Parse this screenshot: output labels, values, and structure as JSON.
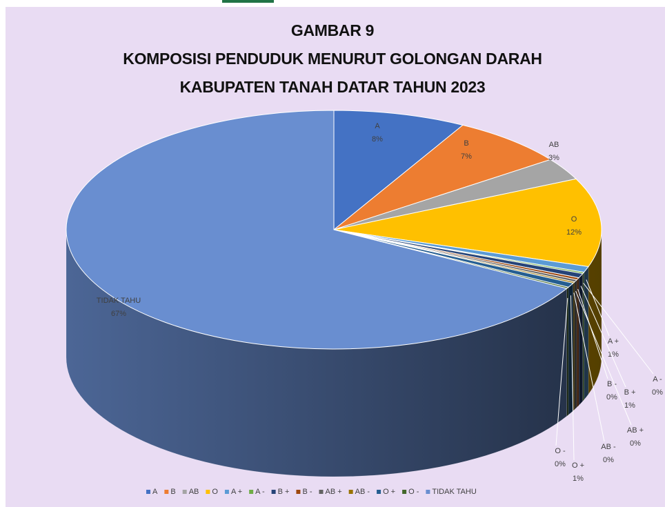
{
  "chart_data": {
    "type": "pie",
    "title": [
      "GAMBAR 9",
      "KOMPOSISI PENDUDUK MENURUT GOLONGAN DARAH",
      "KABUPATEN TANAH DATAR TAHUN 2023"
    ],
    "categories": [
      "A",
      "B",
      "AB",
      "O",
      "A +",
      "A -",
      "B +",
      "B -",
      "AB +",
      "AB -",
      "O +",
      "O -",
      "TIDAK TAHU"
    ],
    "values": [
      8,
      7,
      3,
      12,
      0.8,
      0.2,
      0.6,
      0.3,
      0.3,
      0.2,
      0.6,
      0.2,
      66.8
    ],
    "value_labels": [
      "8%",
      "7%",
      "3%",
      "12%",
      "1%",
      "0%",
      "1%",
      "0%",
      "0%",
      "0%",
      "1%",
      "0%",
      "67%"
    ],
    "colors": [
      "#4472c4",
      "#ed7d31",
      "#a5a5a5",
      "#ffc000",
      "#5b9bd5",
      "#70ad47",
      "#264478",
      "#9e480e",
      "#636363",
      "#997300",
      "#255e91",
      "#43682b",
      "#698ed0"
    ],
    "legend": "bottom"
  }
}
